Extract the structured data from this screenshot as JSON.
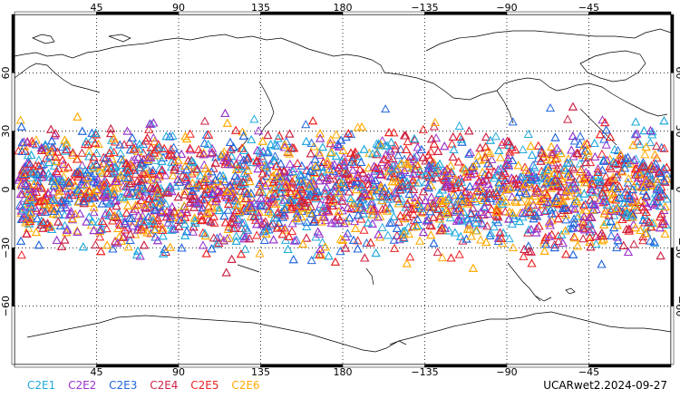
{
  "top_lon_labels": [
    "45",
    "90",
    "135",
    "180",
    "−135",
    "−90",
    "−45"
  ],
  "bottom_lon_labels": [
    "45",
    "90",
    "135",
    "180",
    "−135",
    "−90",
    "−45"
  ],
  "lat_labels": [
    "60",
    "30",
    "0",
    "−30",
    "−60"
  ],
  "legend": [
    {
      "label": "C2E1",
      "color": "#22aadd"
    },
    {
      "label": "C2E2",
      "color": "#9933cc"
    },
    {
      "label": "C2E3",
      "color": "#2266dd"
    },
    {
      "label": "C2E4",
      "color": "#cc2244"
    },
    {
      "label": "C2E5",
      "color": "#ee2222"
    },
    {
      "label": "C2E6",
      "color": "#ffaa00"
    }
  ],
  "stamp": "UCARwet2.2024-09-27",
  "map": {
    "projection": "cylindrical equidistant",
    "lon_range": [
      0,
      360
    ],
    "lat_range": [
      -90,
      90
    ],
    "occultation_lat_band": [
      -45,
      45
    ],
    "marker": "open triangle",
    "grid": "dotted",
    "frame_ticks": "alternating black/white"
  }
}
